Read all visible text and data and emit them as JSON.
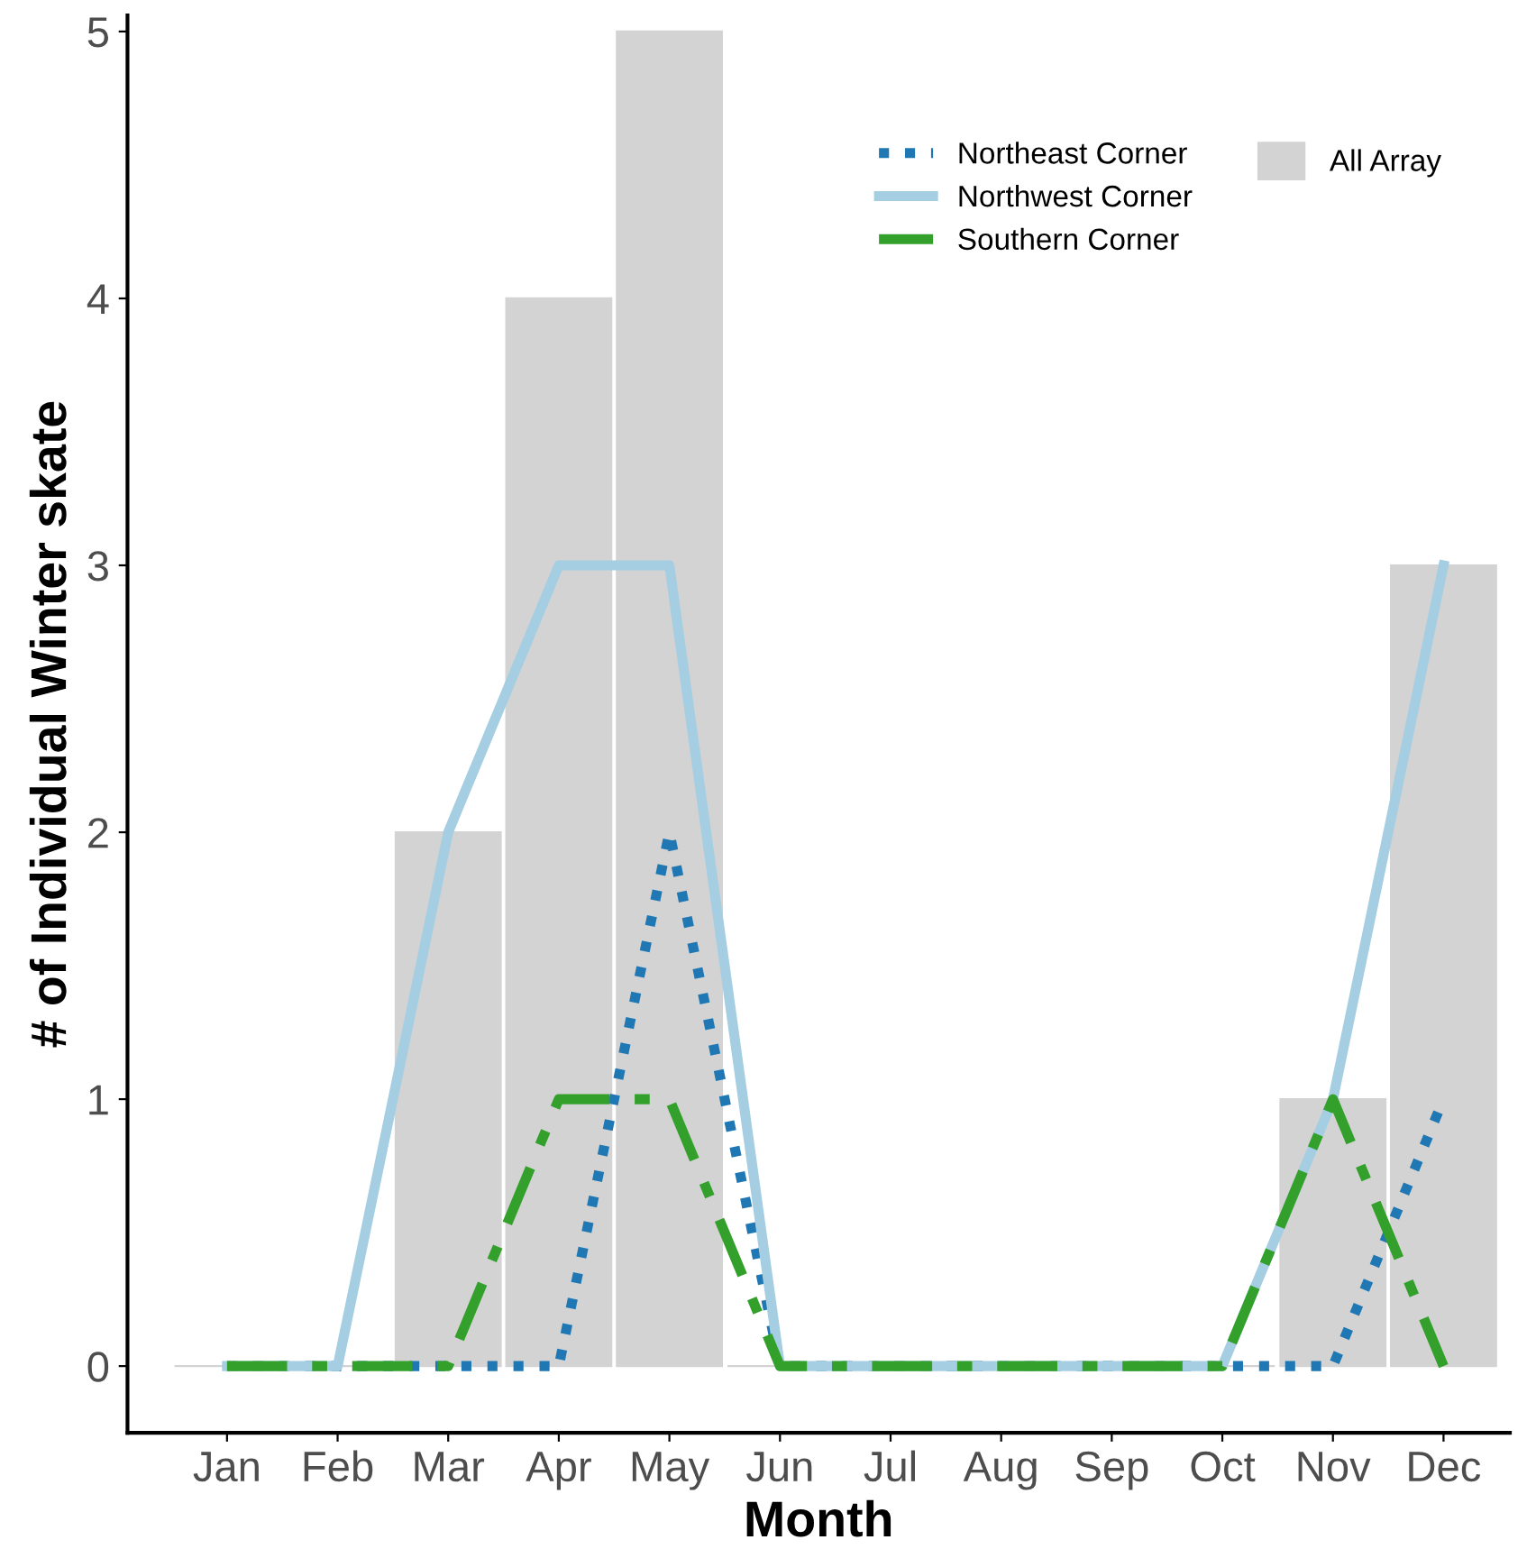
{
  "chart_data": {
    "type": "bar",
    "xlabel": "Month",
    "ylabel": "# of Individual Winter skate",
    "categories": [
      "Jan",
      "Feb",
      "Mar",
      "Apr",
      "May",
      "Jun",
      "Jul",
      "Aug",
      "Sep",
      "Oct",
      "Nov",
      "Dec"
    ],
    "series": [
      {
        "name": "All Array",
        "color": "#d3d3d3",
        "values": [
          0,
          0,
          2,
          4,
          5,
          0,
          0,
          0,
          0,
          0,
          1,
          3
        ]
      },
      {
        "name": "Northeast Corner",
        "type": "line",
        "line_style": "dotted",
        "color": "#1f78b4",
        "values": [
          0,
          0,
          0,
          0,
          2,
          0,
          0,
          0,
          0,
          0,
          0,
          1
        ]
      },
      {
        "name": "Northwest Corner",
        "type": "line",
        "line_style": "solid",
        "color": "#a6cee3",
        "values": [
          0,
          0,
          2,
          3,
          3,
          0,
          0,
          0,
          0,
          0,
          1,
          3
        ]
      },
      {
        "name": "Southern Corner",
        "type": "line",
        "line_style": "dashed",
        "color": "#33a02c",
        "values": [
          0,
          0,
          0,
          1,
          1,
          0,
          0,
          0,
          0,
          0,
          1,
          0
        ]
      }
    ],
    "ylim": [
      -0.25,
      5.06
    ],
    "yticks": [
      0,
      1,
      2,
      3,
      4,
      5
    ],
    "grid": false,
    "legend": "top right"
  }
}
